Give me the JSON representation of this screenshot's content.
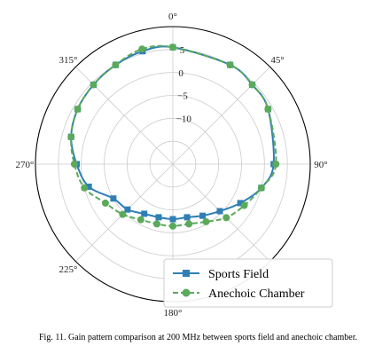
{
  "chart_data": {
    "type": "line",
    "subtype": "polar",
    "theta_labels": [
      {
        "angle": 0,
        "text": "0°"
      },
      {
        "angle": 45,
        "text": "45°"
      },
      {
        "angle": 90,
        "text": "90°"
      },
      {
        "angle": 180,
        "text": "180°"
      },
      {
        "angle": 225,
        "text": "225°"
      },
      {
        "angle": 270,
        "text": "270°"
      },
      {
        "angle": 315,
        "text": "315°"
      }
    ],
    "r_ticks": [
      {
        "value": 5,
        "text": "5"
      },
      {
        "value": 0,
        "text": "0"
      },
      {
        "value": -5,
        "text": "−5"
      },
      {
        "value": -10,
        "text": "−10"
      }
    ],
    "r_range": [
      -20,
      10
    ],
    "theta_direction": "clockwise",
    "theta_zero": "top",
    "grid": true,
    "legend_position": "bottom-right",
    "series": [
      {
        "name": "Sports Field",
        "color": "#2f7fb5",
        "marker": "square",
        "linestyle": "solid",
        "points": [
          [
            0,
            5.5
          ],
          [
            30,
            5
          ],
          [
            45,
            4.5
          ],
          [
            60,
            4
          ],
          [
            90,
            2
          ],
          [
            105,
            0
          ],
          [
            120,
            -3
          ],
          [
            135,
            -5.5
          ],
          [
            150,
            -7
          ],
          [
            165,
            -8
          ],
          [
            180,
            -8
          ],
          [
            195,
            -8
          ],
          [
            210,
            -7.5
          ],
          [
            225,
            -6
          ],
          [
            240,
            -5
          ],
          [
            255,
            -1
          ],
          [
            270,
            1
          ],
          [
            285,
            3
          ],
          [
            300,
            4
          ],
          [
            315,
            4.5
          ],
          [
            330,
            5
          ],
          [
            345,
            5.5
          ]
        ]
      },
      {
        "name": "Anechoic Chamber",
        "color": "#5aaa5a",
        "marker": "circle",
        "linestyle": "dashed",
        "points": [
          [
            0,
            5.5
          ],
          [
            30,
            5
          ],
          [
            45,
            4.5
          ],
          [
            60,
            4
          ],
          [
            90,
            2.5
          ],
          [
            105,
            0
          ],
          [
            120,
            -2
          ],
          [
            135,
            -3.5
          ],
          [
            150,
            -5.5
          ],
          [
            165,
            -6.5
          ],
          [
            180,
            -6.5
          ],
          [
            195,
            -6.5
          ],
          [
            210,
            -6
          ],
          [
            225,
            -4.5
          ],
          [
            240,
            -3
          ],
          [
            255,
            0
          ],
          [
            270,
            1.5
          ],
          [
            285,
            3
          ],
          [
            300,
            4
          ],
          [
            315,
            4.5
          ],
          [
            330,
            5
          ],
          [
            345,
            6
          ]
        ]
      }
    ]
  },
  "caption": {
    "text": "Fig. 11.  Gain pattern comparison at 200 MHz between sports field and anechoic chamber."
  }
}
